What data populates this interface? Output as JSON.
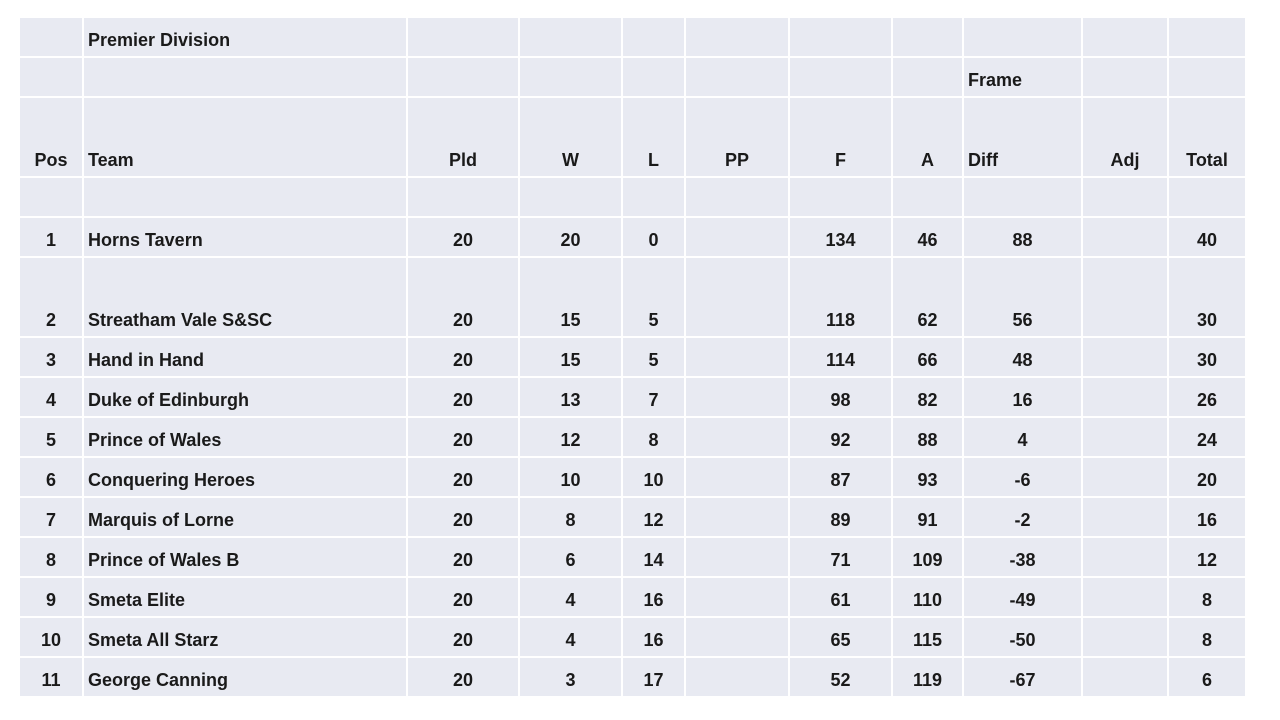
{
  "title": "Premier Division",
  "header": {
    "frame_label": "Frame",
    "pos": "Pos",
    "team": "Team",
    "pld": "Pld",
    "w": "W",
    "l": "L",
    "pp": "PP",
    "f": "F",
    "a": "A",
    "diff": "Diff",
    "adj": "Adj",
    "total": "Total"
  },
  "rows": [
    {
      "pos": "1",
      "team": "Horns Tavern",
      "pld": "20",
      "w": "20",
      "l": "0",
      "pp": "",
      "f": "134",
      "a": "46",
      "diff": "88",
      "adj": "",
      "total": "40"
    },
    {
      "pos": "2",
      "team": "Streatham Vale S&SC",
      "pld": "20",
      "w": "15",
      "l": "5",
      "pp": "",
      "f": "118",
      "a": "62",
      "diff": "56",
      "adj": "",
      "total": "30"
    },
    {
      "pos": "3",
      "team": "Hand in Hand",
      "pld": "20",
      "w": "15",
      "l": "5",
      "pp": "",
      "f": "114",
      "a": "66",
      "diff": "48",
      "adj": "",
      "total": "30"
    },
    {
      "pos": "4",
      "team": "Duke of Edinburgh",
      "pld": "20",
      "w": "13",
      "l": "7",
      "pp": "",
      "f": "98",
      "a": "82",
      "diff": "16",
      "adj": "",
      "total": "26"
    },
    {
      "pos": "5",
      "team": "Prince of Wales",
      "pld": "20",
      "w": "12",
      "l": "8",
      "pp": "",
      "f": "92",
      "a": "88",
      "diff": "4",
      "adj": "",
      "total": "24"
    },
    {
      "pos": "6",
      "team": "Conquering Heroes",
      "pld": "20",
      "w": "10",
      "l": "10",
      "pp": "",
      "f": "87",
      "a": "93",
      "diff": "-6",
      "adj": "",
      "total": "20"
    },
    {
      "pos": "7",
      "team": "Marquis of Lorne",
      "pld": "20",
      "w": "8",
      "l": "12",
      "pp": "",
      "f": "89",
      "a": "91",
      "diff": "-2",
      "adj": "",
      "total": "16"
    },
    {
      "pos": "8",
      "team": "Prince of Wales B",
      "pld": "20",
      "w": "6",
      "l": "14",
      "pp": "",
      "f": "71",
      "a": "109",
      "diff": "-38",
      "adj": "",
      "total": "12"
    },
    {
      "pos": "9",
      "team": "Smeta Elite",
      "pld": "20",
      "w": "4",
      "l": "16",
      "pp": "",
      "f": "61",
      "a": "110",
      "diff": "-49",
      "adj": "",
      "total": "8"
    },
    {
      "pos": "10",
      "team": "Smeta All Starz",
      "pld": "20",
      "w": "4",
      "l": "16",
      "pp": "",
      "f": "65",
      "a": "115",
      "diff": "-50",
      "adj": "",
      "total": "8"
    },
    {
      "pos": "11",
      "team": "George Canning",
      "pld": "20",
      "w": "3",
      "l": "17",
      "pp": "",
      "f": "52",
      "a": "119",
      "diff": "-67",
      "adj": "",
      "total": "6"
    }
  ]
}
